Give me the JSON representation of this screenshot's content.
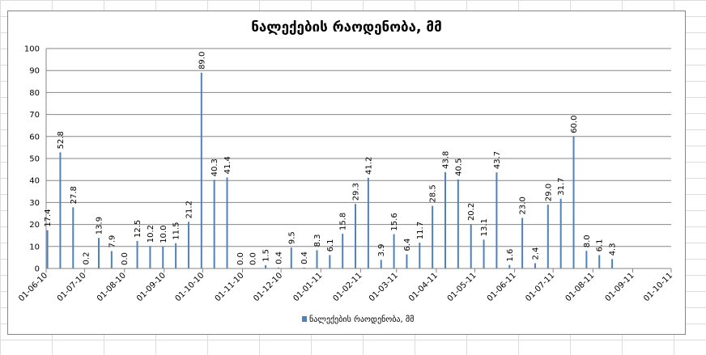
{
  "chart_data": {
    "type": "bar",
    "title": "ნალექების რაოდენობა, მმ",
    "legend": {
      "label": "ნალექების რაოდენობა, მმ",
      "position": "bottom",
      "color": "#4f81bd"
    },
    "ylim": [
      0,
      100
    ],
    "yticks": [
      0,
      10,
      20,
      30,
      40,
      50,
      60,
      70,
      80,
      90,
      100
    ],
    "grid": true,
    "xlim_days": [
      0,
      487
    ],
    "xticks": [
      {
        "label": "01-06-10",
        "day": 0
      },
      {
        "label": "01-07-10",
        "day": 30
      },
      {
        "label": "01-08-10",
        "day": 61
      },
      {
        "label": "01-09-10",
        "day": 92
      },
      {
        "label": "01-10-10",
        "day": 122
      },
      {
        "label": "01-11-10",
        "day": 153
      },
      {
        "label": "01-12-10",
        "day": 183
      },
      {
        "label": "01-01-11",
        "day": 214
      },
      {
        "label": "01-02-11",
        "day": 245
      },
      {
        "label": "01-03-11",
        "day": 273
      },
      {
        "label": "01-04-11",
        "day": 304
      },
      {
        "label": "01-05-11",
        "day": 334
      },
      {
        "label": "01-06-11",
        "day": 365
      },
      {
        "label": "01-07-11",
        "day": 395
      },
      {
        "label": "01-08-11",
        "day": 426
      },
      {
        "label": "01-09-11",
        "day": 457
      },
      {
        "label": "01-10-11",
        "day": 487
      }
    ],
    "points": [
      {
        "day": 1,
        "value": 17.4,
        "label": "17.4"
      },
      {
        "day": 11,
        "value": 52.8,
        "label": "52.8"
      },
      {
        "day": 21,
        "value": 27.8,
        "label": "27.8"
      },
      {
        "day": 31,
        "value": 0.2,
        "label": "0.2"
      },
      {
        "day": 41,
        "value": 13.9,
        "label": "13.9"
      },
      {
        "day": 51,
        "value": 7.9,
        "label": "7.9"
      },
      {
        "day": 61,
        "value": 0.0,
        "label": "0.0"
      },
      {
        "day": 71,
        "value": 12.5,
        "label": "12.5"
      },
      {
        "day": 81,
        "value": 10.2,
        "label": "10.2"
      },
      {
        "day": 91,
        "value": 10.0,
        "label": "10.0"
      },
      {
        "day": 101,
        "value": 11.5,
        "label": "11.5"
      },
      {
        "day": 111,
        "value": 21.2,
        "label": "21.2"
      },
      {
        "day": 121,
        "value": 89.0,
        "label": "89.0"
      },
      {
        "day": 131,
        "value": 40.3,
        "label": "40.3"
      },
      {
        "day": 141,
        "value": 41.4,
        "label": "41.4"
      },
      {
        "day": 151,
        "value": 0.0,
        "label": "0.0"
      },
      {
        "day": 161,
        "value": 0.0,
        "label": "0.0"
      },
      {
        "day": 171,
        "value": 1.5,
        "label": "1.5"
      },
      {
        "day": 181,
        "value": 0.4,
        "label": "0.4"
      },
      {
        "day": 191,
        "value": 9.5,
        "label": "9.5"
      },
      {
        "day": 201,
        "value": 0.4,
        "label": "0.4"
      },
      {
        "day": 211,
        "value": 8.3,
        "label": "8.3"
      },
      {
        "day": 221,
        "value": 6.1,
        "label": "6.1"
      },
      {
        "day": 231,
        "value": 15.8,
        "label": "15.8"
      },
      {
        "day": 241,
        "value": 29.3,
        "label": "29.3"
      },
      {
        "day": 251,
        "value": 41.2,
        "label": "41.2"
      },
      {
        "day": 261,
        "value": 3.9,
        "label": "3.9"
      },
      {
        "day": 271,
        "value": 15.6,
        "label": "15.6"
      },
      {
        "day": 281,
        "value": 6.4,
        "label": "6.4"
      },
      {
        "day": 291,
        "value": 11.7,
        "label": "11.7"
      },
      {
        "day": 301,
        "value": 28.5,
        "label": "28.5"
      },
      {
        "day": 311,
        "value": 43.8,
        "label": "43.8"
      },
      {
        "day": 321,
        "value": 40.5,
        "label": "40.5"
      },
      {
        "day": 331,
        "value": 20.2,
        "label": "20.2"
      },
      {
        "day": 341,
        "value": 13.1,
        "label": "13.1"
      },
      {
        "day": 351,
        "value": 43.7,
        "label": "43.7"
      },
      {
        "day": 361,
        "value": 1.6,
        "label": "1.6"
      },
      {
        "day": 371,
        "value": 23.0,
        "label": "23.0"
      },
      {
        "day": 381,
        "value": 2.4,
        "label": "2.4"
      },
      {
        "day": 391,
        "value": 29.0,
        "label": "29.0"
      },
      {
        "day": 401,
        "value": 31.7,
        "label": "31.7"
      },
      {
        "day": 411,
        "value": 60.0,
        "label": "60.0"
      },
      {
        "day": 421,
        "value": 8.0,
        "label": "8.0"
      },
      {
        "day": 431,
        "value": 6.1,
        "label": "6.1"
      },
      {
        "day": 441,
        "value": 4.3,
        "label": "4.3"
      }
    ]
  }
}
